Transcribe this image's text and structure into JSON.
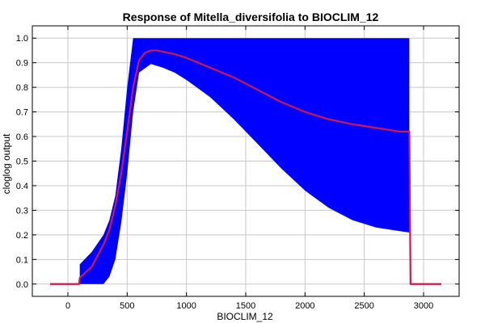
{
  "chart_data": {
    "type": "area",
    "title": "Response of Mitella_diversifolia to BIOCLIM_12",
    "xlabel": "BIOCLIM_12",
    "ylabel": "cloglog output",
    "xlim": [
      -300,
      3300
    ],
    "ylim": [
      -0.05,
      1.05
    ],
    "xticks": [
      0,
      500,
      1000,
      1500,
      2000,
      2500,
      3000
    ],
    "yticks": [
      0.0,
      0.1,
      0.2,
      0.3,
      0.4,
      0.5,
      0.6,
      0.7,
      0.8,
      0.9,
      1.0
    ],
    "grid": true,
    "colors": {
      "band": "#0000ff",
      "mean": "#d0184a"
    },
    "series": [
      {
        "role": "band",
        "x": [
          100,
          100,
          200,
          300,
          350,
          400,
          450,
          500,
          550,
          600,
          700,
          800,
          900,
          1000,
          1200,
          1400,
          1600,
          1800,
          2000,
          2200,
          2400,
          2600,
          2800,
          2880
        ],
        "upper": [
          0.08,
          0.08,
          0.13,
          0.2,
          0.26,
          0.36,
          0.55,
          0.8,
          1.0,
          1.0,
          1.0,
          1.0,
          1.0,
          1.0,
          1.0,
          1.0,
          1.0,
          1.0,
          1.0,
          1.0,
          1.0,
          1.0,
          1.0,
          1.0
        ],
        "lower": [
          0.0,
          0.0,
          0.0,
          0.0,
          0.03,
          0.1,
          0.25,
          0.45,
          0.7,
          0.86,
          0.895,
          0.88,
          0.86,
          0.83,
          0.76,
          0.67,
          0.57,
          0.47,
          0.38,
          0.31,
          0.26,
          0.23,
          0.215,
          0.21
        ]
      },
      {
        "role": "mean",
        "x": [
          -150,
          95,
          100,
          200,
          300,
          350,
          400,
          450,
          500,
          550,
          600,
          650,
          700,
          750,
          800,
          900,
          1000,
          1200,
          1400,
          1600,
          1800,
          2000,
          2200,
          2400,
          2600,
          2800,
          2880,
          2890,
          3150
        ],
        "y": [
          0.0,
          0.0,
          0.025,
          0.07,
          0.16,
          0.22,
          0.32,
          0.45,
          0.62,
          0.8,
          0.91,
          0.94,
          0.95,
          0.95,
          0.945,
          0.935,
          0.92,
          0.88,
          0.84,
          0.79,
          0.74,
          0.7,
          0.67,
          0.65,
          0.635,
          0.62,
          0.62,
          0.0,
          0.0
        ]
      }
    ]
  }
}
